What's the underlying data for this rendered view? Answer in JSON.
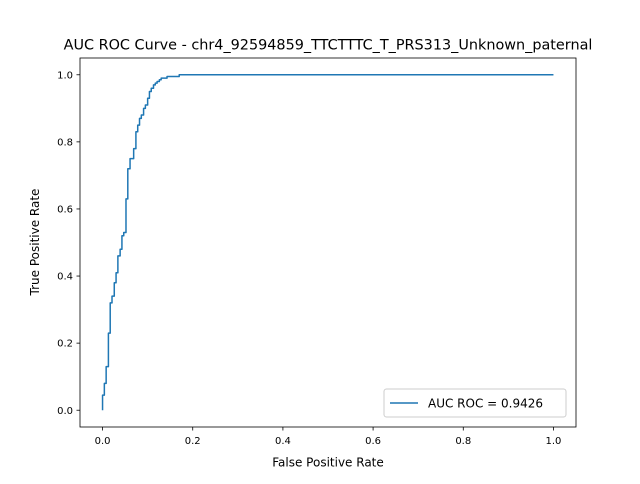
{
  "chart_data": {
    "type": "line",
    "title": "AUC ROC Curve - chr4_92594859_TTCTTTC_T_PRS313_Unknown_paternal",
    "xlabel": "False Positive Rate",
    "ylabel": "True Positive Rate",
    "xlim": [
      -0.05,
      1.05
    ],
    "ylim": [
      -0.05,
      1.05
    ],
    "x_ticks": [
      0.0,
      0.2,
      0.4,
      0.6,
      0.8,
      1.0
    ],
    "x_tick_labels": [
      "0.0",
      "0.2",
      "0.4",
      "0.6",
      "0.8",
      "1.0"
    ],
    "y_ticks": [
      0.0,
      0.2,
      0.4,
      0.6,
      0.8,
      1.0
    ],
    "y_tick_labels": [
      "0.0",
      "0.2",
      "0.4",
      "0.6",
      "0.8",
      "1.0"
    ],
    "grid": false,
    "legend_position": "lower right",
    "series": [
      {
        "name": "AUC ROC = 0.9426",
        "color": "#1f77b4",
        "x": [
          0.0,
          0.0,
          0.004,
          0.004,
          0.008,
          0.008,
          0.013,
          0.013,
          0.017,
          0.017,
          0.021,
          0.021,
          0.026,
          0.026,
          0.03,
          0.03,
          0.034,
          0.034,
          0.039,
          0.039,
          0.043,
          0.043,
          0.047,
          0.047,
          0.052,
          0.052,
          0.056,
          0.056,
          0.061,
          0.061,
          0.069,
          0.069,
          0.074,
          0.074,
          0.078,
          0.078,
          0.082,
          0.082,
          0.086,
          0.086,
          0.091,
          0.091,
          0.095,
          0.095,
          0.1,
          0.1,
          0.104,
          0.104,
          0.108,
          0.108,
          0.113,
          0.113,
          0.117,
          0.117,
          0.121,
          0.121,
          0.126,
          0.126,
          0.13,
          0.13,
          0.134,
          0.134,
          0.139,
          0.139,
          0.143,
          0.143,
          0.147,
          0.147,
          0.152,
          0.152,
          0.156,
          0.156,
          0.16,
          0.16,
          0.17,
          0.17,
          0.19,
          0.19,
          0.21,
          0.21,
          0.23,
          0.23,
          0.3,
          0.5,
          0.8,
          1.0
        ],
        "y": [
          0.0,
          0.045,
          0.045,
          0.08,
          0.08,
          0.13,
          0.13,
          0.23,
          0.23,
          0.32,
          0.32,
          0.34,
          0.34,
          0.38,
          0.38,
          0.41,
          0.41,
          0.46,
          0.46,
          0.48,
          0.48,
          0.52,
          0.52,
          0.53,
          0.53,
          0.63,
          0.63,
          0.72,
          0.72,
          0.75,
          0.75,
          0.78,
          0.78,
          0.83,
          0.83,
          0.85,
          0.85,
          0.87,
          0.87,
          0.88,
          0.88,
          0.9,
          0.9,
          0.91,
          0.91,
          0.93,
          0.93,
          0.95,
          0.95,
          0.96,
          0.96,
          0.97,
          0.97,
          0.975,
          0.975,
          0.98,
          0.98,
          0.985,
          0.985,
          0.99,
          0.99,
          0.99,
          0.99,
          0.99,
          0.99,
          0.995,
          0.995,
          0.995,
          0.995,
          0.995,
          0.995,
          0.995,
          0.995,
          0.995,
          0.995,
          1.0,
          1.0,
          1.0,
          1.0,
          1.0,
          1.0,
          1.0,
          1.0,
          1.0,
          1.0,
          1.0
        ]
      }
    ]
  }
}
